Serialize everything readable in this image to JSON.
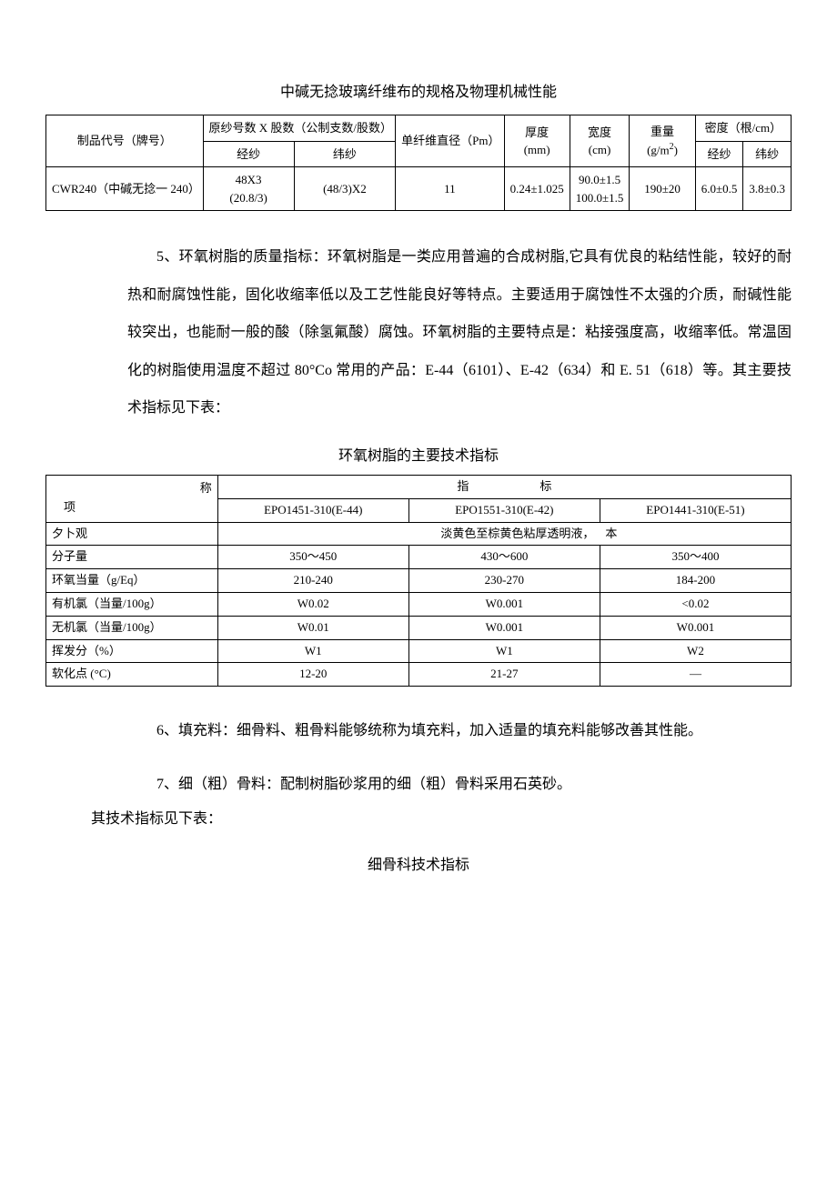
{
  "title1": "中碱无捻玻璃纤维布的规格及物理机械性能",
  "table1": {
    "headers": {
      "col1": "制品代号（牌号）",
      "col2_top": "原纱号数 X 股数（公制支数/股数）",
      "col2a": "经纱",
      "col2b": "纬纱",
      "col3": "单纤维直径（Pm）",
      "col4": "厚度\n(mm)",
      "col5": "宽度\n(cm)",
      "col6_html": "重量(g/m<span class='sup'>2</span>)",
      "col7_top": "密度（根/cm）",
      "col7a": "经纱",
      "col7b": "纬纱"
    },
    "row": {
      "c1": "CWR240（中碱无捻一 240）",
      "c2a": "48X3\n(20.8/3)",
      "c2b": "(48/3)X2",
      "c3": "11",
      "c4": "0.24±1.025",
      "c5": "90.0±1.5\n100.0±1.5",
      "c6": "190±20",
      "c7a": "6.0±0.5",
      "c7b": "3.8±0.3"
    }
  },
  "para5": "5、环氧树脂的质量指标：环氧树脂是一类应用普遍的合成树脂,它具有优良的粘结性能，较好的耐热和耐腐蚀性能，固化收缩率低以及工艺性能良好等特点。主要适用于腐蚀性不太强的介质，耐碱性能较突出，也能耐一般的酸（除氢氟酸）腐蚀。环氧树脂的主要特点是：粘接强度高，收缩率低。常温固化的树脂使用温度不超过 80°Co 常用的产品：E-44（6101）、E-42（634）和 E. 51（618）等。其主要技术指标见下表：",
  "title2": "环氧树脂的主要技术指标",
  "table2": {
    "hdr_name_r": "称",
    "hdr_name_b": "项",
    "hdr_ind": "指　　　　　　标",
    "cols": [
      "EPO1451-310(E-44)",
      "EPO1551-310(E-42)",
      "EPO1441-310(E-51)"
    ],
    "rows": [
      {
        "label": "夕卜观",
        "span": "淡黄色至棕黄色粘厚透明液，",
        "tail": "本"
      },
      {
        "label": "分子量",
        "v": [
          "350～450",
          "430～600",
          "350～400"
        ]
      },
      {
        "label": "环氧当量（g/Eq）",
        "v": [
          "210-240",
          "230-270",
          "184-200"
        ]
      },
      {
        "label": "有机氯（当量/100g）",
        "v": [
          "W0.02",
          "W0.001",
          "<0.02"
        ]
      },
      {
        "label": "无机氯（当量/100g）",
        "v": [
          "W0.01",
          "W0.001",
          "W0.001"
        ]
      },
      {
        "label": "挥发分（%）",
        "v": [
          "W1",
          "W1",
          "W2"
        ]
      },
      {
        "label": "软化点 (°C)",
        "v": [
          "12-20",
          "21-27",
          "—"
        ]
      }
    ]
  },
  "para6": "6、填充料：细骨料、粗骨料能够统称为填充料，加入适量的填充料能够改善其性能。",
  "para7": "7、细（粗）骨料：配制树脂砂浆用的细（粗）骨料采用石英砂。",
  "para7b": "其技术指标见下表：",
  "title3": "细骨科技术指标"
}
